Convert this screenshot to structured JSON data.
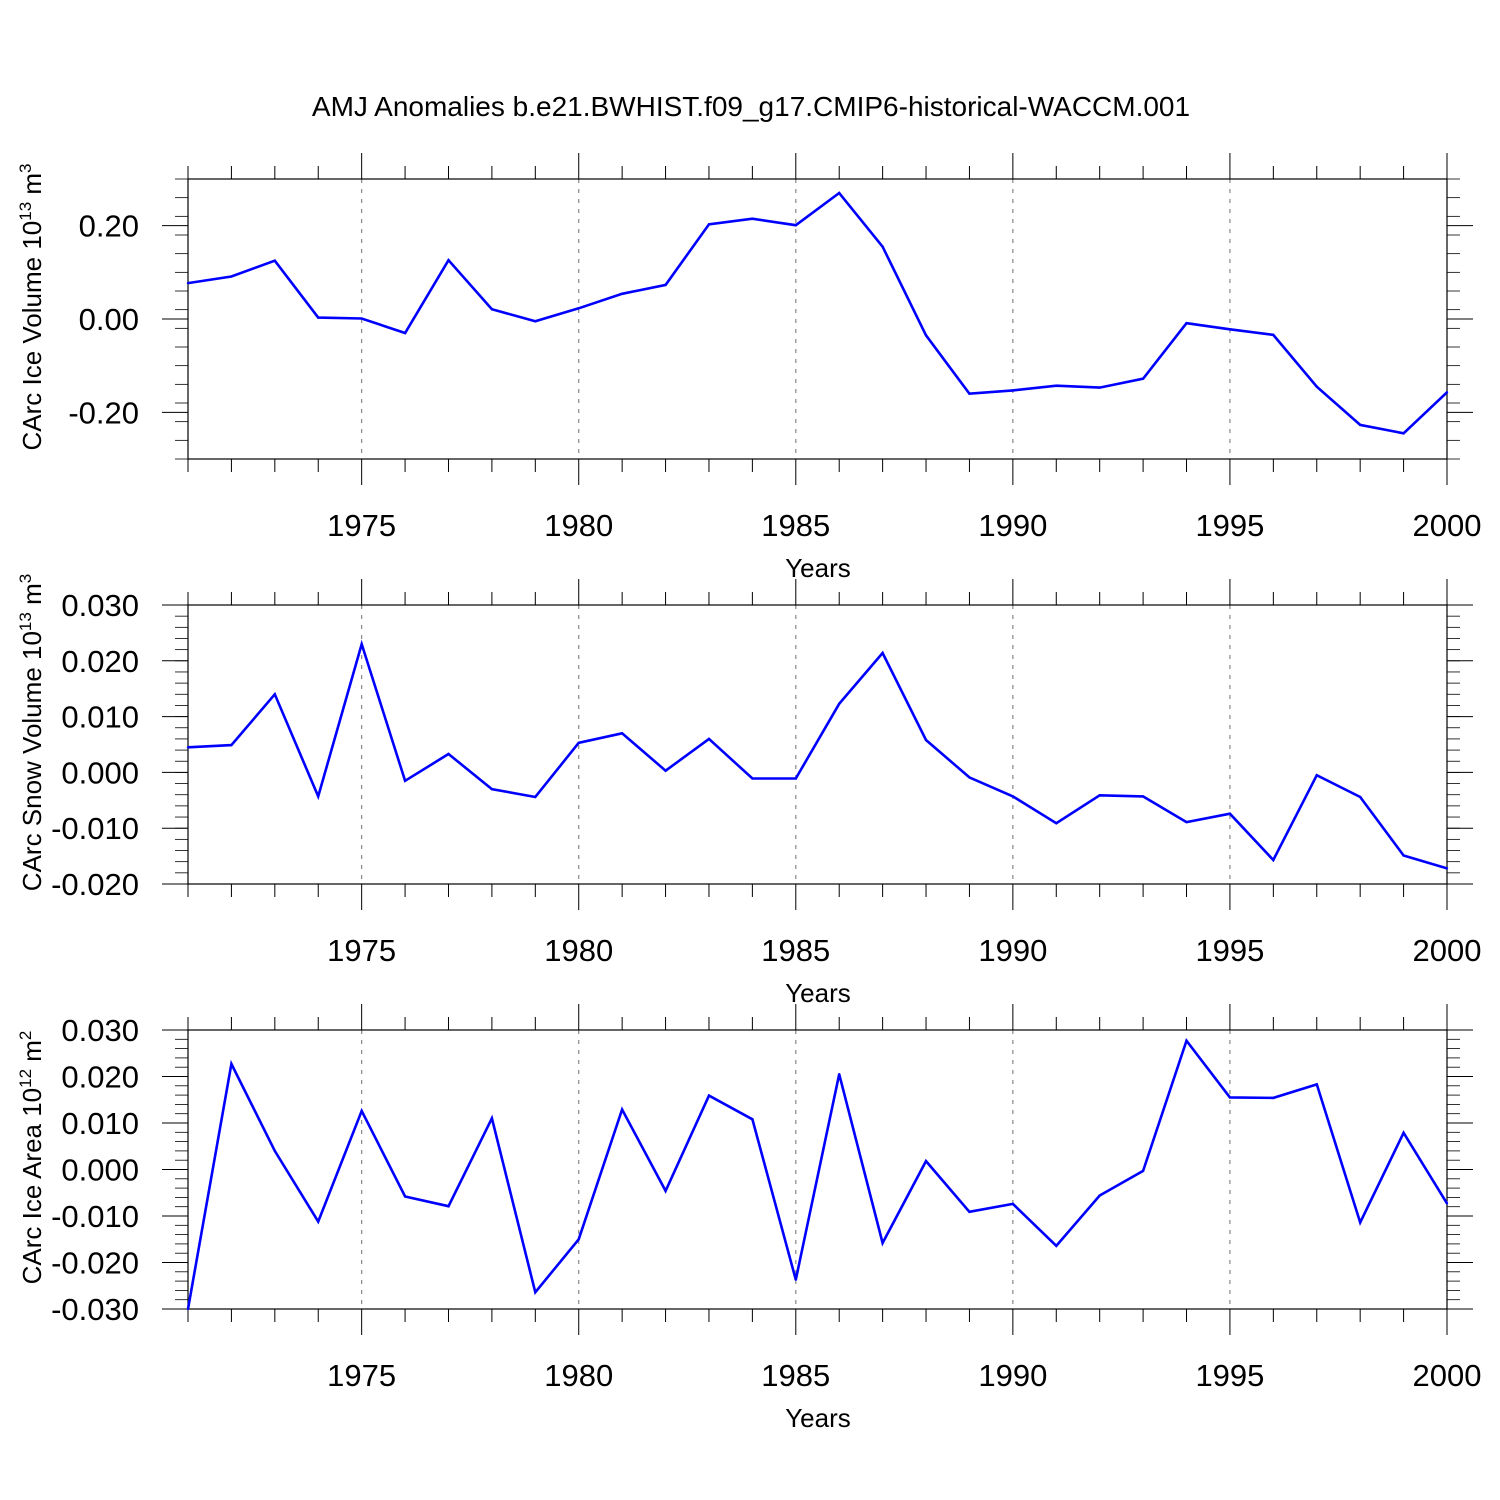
{
  "title": "AMJ Anomalies b.e21.BWHIST.f09_g17.CMIP6-historical-WACCM.001",
  "chart_data": [
    {
      "type": "line",
      "ylabel": "CArc Ice Volume 10",
      "ylabel_exp": "13",
      "ylabel_unit": " m",
      "ylabel_unit_exp": "3",
      "xlabel": "Years",
      "xlim": [
        1971,
        2000
      ],
      "ylim": [
        -0.3,
        0.3
      ],
      "xticks": [
        1975,
        1980,
        1985,
        1990,
        1995,
        2000
      ],
      "xtick_labels": [
        "1975",
        "1980",
        "1985",
        "1990",
        "1995",
        "2000"
      ],
      "yticks": [
        0.2,
        0.0,
        -0.2
      ],
      "ytick_labels": [
        "0.20",
        "0.00",
        "-0.20"
      ],
      "gridlines_x": [
        1975,
        1980,
        1985,
        1990,
        1995
      ],
      "line_color": "#0000ff",
      "series": [
        {
          "name": "CArc Ice Volume",
          "x": [
            1971,
            1972,
            1973,
            1974,
            1975,
            1976,
            1977,
            1978,
            1979,
            1980,
            1981,
            1982,
            1983,
            1984,
            1985,
            1986,
            1987,
            1988,
            1989,
            1990,
            1991,
            1992,
            1993,
            1994,
            1995,
            1996,
            1997,
            1998,
            1999,
            2000
          ],
          "values": [
            0.077,
            0.091,
            0.125,
            0.003,
            0.001,
            -0.03,
            0.126,
            0.021,
            -0.005,
            0.023,
            0.054,
            0.073,
            0.203,
            0.215,
            0.201,
            0.27,
            0.155,
            -0.035,
            -0.16,
            -0.153,
            -0.143,
            -0.147,
            -0.128,
            -0.009,
            -0.022,
            -0.034,
            -0.145,
            -0.227,
            -0.245,
            -0.157
          ]
        }
      ]
    },
    {
      "type": "line",
      "ylabel": "CArc Snow Volume 10",
      "ylabel_exp": "13",
      "ylabel_unit": " m",
      "ylabel_unit_exp": "3",
      "xlabel": "Years",
      "xlim": [
        1971,
        2000
      ],
      "ylim": [
        -0.02,
        0.03
      ],
      "xticks": [
        1975,
        1980,
        1985,
        1990,
        1995,
        2000
      ],
      "xtick_labels": [
        "1975",
        "1980",
        "1985",
        "1990",
        "1995",
        "2000"
      ],
      "yticks": [
        0.03,
        0.02,
        0.01,
        0.0,
        -0.01,
        -0.02
      ],
      "ytick_labels": [
        "0.030",
        "0.020",
        "0.010",
        "0.000",
        "-0.010",
        "-0.020"
      ],
      "gridlines_x": [
        1975,
        1980,
        1985,
        1990,
        1995
      ],
      "line_color": "#0000ff",
      "series": [
        {
          "name": "CArc Snow Volume",
          "x": [
            1971,
            1972,
            1973,
            1974,
            1975,
            1976,
            1977,
            1978,
            1979,
            1980,
            1981,
            1982,
            1983,
            1984,
            1985,
            1986,
            1987,
            1988,
            1989,
            1990,
            1991,
            1992,
            1993,
            1994,
            1995,
            1996,
            1997,
            1998,
            1999,
            2000
          ],
          "values": [
            0.0045,
            0.0049,
            0.014,
            -0.0043,
            0.023,
            -0.0015,
            0.0033,
            -0.003,
            -0.0044,
            0.0053,
            0.007,
            0.0003,
            0.006,
            -0.0011,
            -0.0011,
            0.0123,
            0.0214,
            0.0058,
            -0.0009,
            -0.0043,
            -0.0091,
            -0.0041,
            -0.0043,
            -0.0089,
            -0.0074,
            -0.0157,
            -0.0005,
            -0.0044,
            -0.0149,
            -0.0172
          ]
        }
      ]
    },
    {
      "type": "line",
      "ylabel": "CArc Ice Area 10",
      "ylabel_exp": "12",
      "ylabel_unit": " m",
      "ylabel_unit_exp": "2",
      "xlabel": "Years",
      "xlim": [
        1971,
        2000
      ],
      "ylim": [
        -0.03,
        0.03
      ],
      "xticks": [
        1975,
        1980,
        1985,
        1990,
        1995,
        2000
      ],
      "xtick_labels": [
        "1975",
        "1980",
        "1985",
        "1990",
        "1995",
        "2000"
      ],
      "yticks": [
        0.03,
        0.02,
        0.01,
        0.0,
        -0.01,
        -0.02,
        -0.03
      ],
      "ytick_labels": [
        "0.030",
        "0.020",
        "0.010",
        "0.000",
        "-0.010",
        "-0.020",
        "-0.030"
      ],
      "gridlines_x": [
        1975,
        1980,
        1985,
        1990,
        1995
      ],
      "line_color": "#0000ff",
      "series": [
        {
          "name": "CArc Ice Area",
          "x": [
            1971,
            1972,
            1973,
            1974,
            1975,
            1976,
            1977,
            1978,
            1979,
            1980,
            1981,
            1982,
            1983,
            1984,
            1985,
            1986,
            1987,
            1988,
            1989,
            1990,
            1991,
            1992,
            1993,
            1994,
            1995,
            1996,
            1997,
            1998,
            1999,
            2000
          ],
          "values": [
            -0.03,
            0.0227,
            0.004,
            -0.0112,
            0.0126,
            -0.0058,
            -0.0079,
            0.011,
            -0.0264,
            -0.015,
            0.0129,
            -0.0046,
            0.0159,
            0.0108,
            -0.0237,
            0.0205,
            -0.0158,
            0.0018,
            -0.0091,
            -0.0074,
            -0.0164,
            -0.0056,
            -0.0003,
            0.0277,
            0.0155,
            0.0154,
            0.0183,
            -0.0114,
            0.0079,
            -0.0073
          ]
        }
      ]
    }
  ]
}
